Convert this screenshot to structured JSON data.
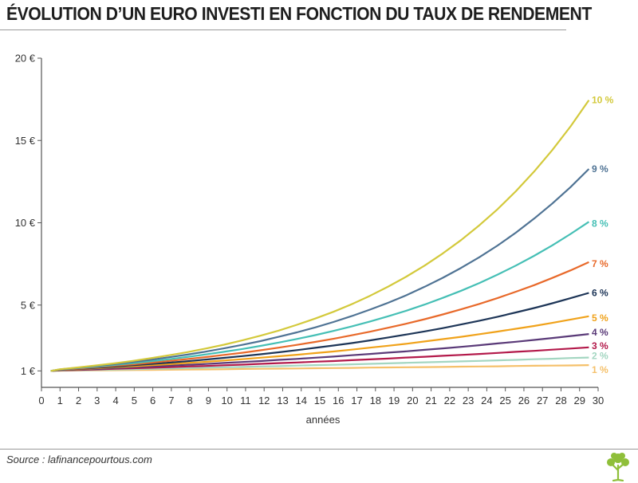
{
  "title": "ÉVOLUTION D’UN EURO INVESTI EN FONCTION DU TAUX DE RENDEMENT",
  "source": "Source : lafinancepourtous.com",
  "chart_data": {
    "type": "line",
    "title": "ÉVOLUTION D’UN EURO INVESTI EN FONCTION DU TAUX DE RENDEMENT",
    "xlabel": "années",
    "ylabel": "",
    "xlim": [
      0,
      30
    ],
    "ylim": [
      0,
      20
    ],
    "x_ticks": [
      "0",
      "1",
      "2",
      "3",
      "4",
      "5",
      "6",
      "7",
      "8",
      "9",
      "10",
      "11",
      "12",
      "13",
      "14",
      "15",
      "16",
      "17",
      "18",
      "19",
      "20",
      "21",
      "22",
      "23",
      "24",
      "25",
      "26",
      "27",
      "28",
      "29",
      "30"
    ],
    "y_ticks": [
      {
        "value": 1,
        "label": "1 €"
      },
      {
        "value": 5,
        "label": "5 €"
      },
      {
        "value": 10,
        "label": "10 €"
      },
      {
        "value": 15,
        "label": "15 €"
      },
      {
        "value": 20,
        "label": "20 €"
      }
    ],
    "x": [
      1,
      2,
      3,
      4,
      5,
      6,
      7,
      8,
      9,
      10,
      11,
      12,
      13,
      14,
      15,
      16,
      17,
      18,
      19,
      20,
      21,
      22,
      23,
      24,
      25,
      26,
      27,
      28,
      29,
      30
    ],
    "grid": false,
    "legend": "series labels at line ends",
    "series": [
      {
        "name": "1 %",
        "color": "#f5c06a",
        "values": [
          1.01,
          1.02,
          1.03,
          1.04,
          1.05,
          1.06,
          1.07,
          1.08,
          1.09,
          1.1,
          1.12,
          1.13,
          1.14,
          1.15,
          1.16,
          1.17,
          1.18,
          1.2,
          1.21,
          1.22,
          1.23,
          1.24,
          1.26,
          1.27,
          1.28,
          1.3,
          1.31,
          1.32,
          1.33,
          1.35
        ]
      },
      {
        "name": "2 %",
        "color": "#a3d6c1",
        "values": [
          1.02,
          1.04,
          1.06,
          1.08,
          1.1,
          1.13,
          1.15,
          1.17,
          1.2,
          1.22,
          1.24,
          1.27,
          1.29,
          1.32,
          1.35,
          1.37,
          1.4,
          1.43,
          1.46,
          1.49,
          1.52,
          1.55,
          1.58,
          1.61,
          1.64,
          1.67,
          1.71,
          1.74,
          1.78,
          1.81
        ]
      },
      {
        "name": "3 %",
        "color": "#b3194a",
        "values": [
          1.03,
          1.06,
          1.09,
          1.13,
          1.16,
          1.19,
          1.23,
          1.27,
          1.3,
          1.34,
          1.38,
          1.43,
          1.47,
          1.51,
          1.56,
          1.6,
          1.65,
          1.7,
          1.75,
          1.81,
          1.86,
          1.92,
          1.97,
          2.03,
          2.09,
          2.16,
          2.22,
          2.29,
          2.36,
          2.43
        ]
      },
      {
        "name": "4 %",
        "color": "#5a3a78",
        "values": [
          1.04,
          1.08,
          1.12,
          1.17,
          1.22,
          1.27,
          1.32,
          1.37,
          1.42,
          1.48,
          1.54,
          1.6,
          1.67,
          1.73,
          1.8,
          1.87,
          1.95,
          2.03,
          2.11,
          2.19,
          2.28,
          2.37,
          2.46,
          2.56,
          2.67,
          2.77,
          2.88,
          3.0,
          3.12,
          3.24
        ]
      },
      {
        "name": "5 %",
        "color": "#f0a21a",
        "values": [
          1.05,
          1.1,
          1.16,
          1.22,
          1.28,
          1.34,
          1.41,
          1.48,
          1.55,
          1.63,
          1.71,
          1.8,
          1.89,
          1.98,
          2.08,
          2.18,
          2.29,
          2.41,
          2.53,
          2.65,
          2.79,
          2.93,
          3.07,
          3.23,
          3.39,
          3.56,
          3.73,
          3.92,
          4.12,
          4.32
        ]
      },
      {
        "name": "6 %",
        "color": "#1d3557",
        "values": [
          1.06,
          1.12,
          1.19,
          1.26,
          1.34,
          1.42,
          1.5,
          1.59,
          1.69,
          1.79,
          1.9,
          2.01,
          2.13,
          2.26,
          2.4,
          2.54,
          2.69,
          2.85,
          3.03,
          3.21,
          3.4,
          3.6,
          3.82,
          4.05,
          4.29,
          4.55,
          4.82,
          5.11,
          5.42,
          5.74
        ]
      },
      {
        "name": "7 %",
        "color": "#e8692a",
        "values": [
          1.07,
          1.14,
          1.23,
          1.31,
          1.4,
          1.5,
          1.61,
          1.72,
          1.84,
          1.97,
          2.1,
          2.25,
          2.41,
          2.58,
          2.76,
          2.95,
          3.16,
          3.38,
          3.62,
          3.87,
          4.14,
          4.43,
          4.74,
          5.07,
          5.43,
          5.81,
          6.21,
          6.65,
          7.11,
          7.61
        ]
      },
      {
        "name": "8 %",
        "color": "#45bfb5",
        "values": [
          1.08,
          1.17,
          1.26,
          1.36,
          1.47,
          1.59,
          1.71,
          1.85,
          2.0,
          2.16,
          2.33,
          2.52,
          2.72,
          2.94,
          3.17,
          3.43,
          3.7,
          4.0,
          4.32,
          4.66,
          5.03,
          5.44,
          5.87,
          6.34,
          6.85,
          7.4,
          7.99,
          8.63,
          9.32,
          10.06
        ]
      },
      {
        "name": "9 %",
        "color": "#4f7394",
        "values": [
          1.09,
          1.19,
          1.3,
          1.41,
          1.54,
          1.68,
          1.83,
          1.99,
          2.17,
          2.37,
          2.58,
          2.81,
          3.07,
          3.34,
          3.64,
          3.97,
          4.33,
          4.72,
          5.14,
          5.6,
          6.11,
          6.66,
          7.26,
          7.91,
          8.62,
          9.4,
          10.25,
          11.17,
          12.17,
          13.27
        ]
      },
      {
        "name": "10 %",
        "color": "#d3c93b",
        "values": [
          1.1,
          1.21,
          1.33,
          1.46,
          1.61,
          1.77,
          1.95,
          2.14,
          2.36,
          2.59,
          2.85,
          3.14,
          3.45,
          3.8,
          4.18,
          4.59,
          5.05,
          5.56,
          6.12,
          6.73,
          7.4,
          8.14,
          8.95,
          9.85,
          10.83,
          11.92,
          13.11,
          14.42,
          15.86,
          17.45
        ]
      }
    ]
  }
}
